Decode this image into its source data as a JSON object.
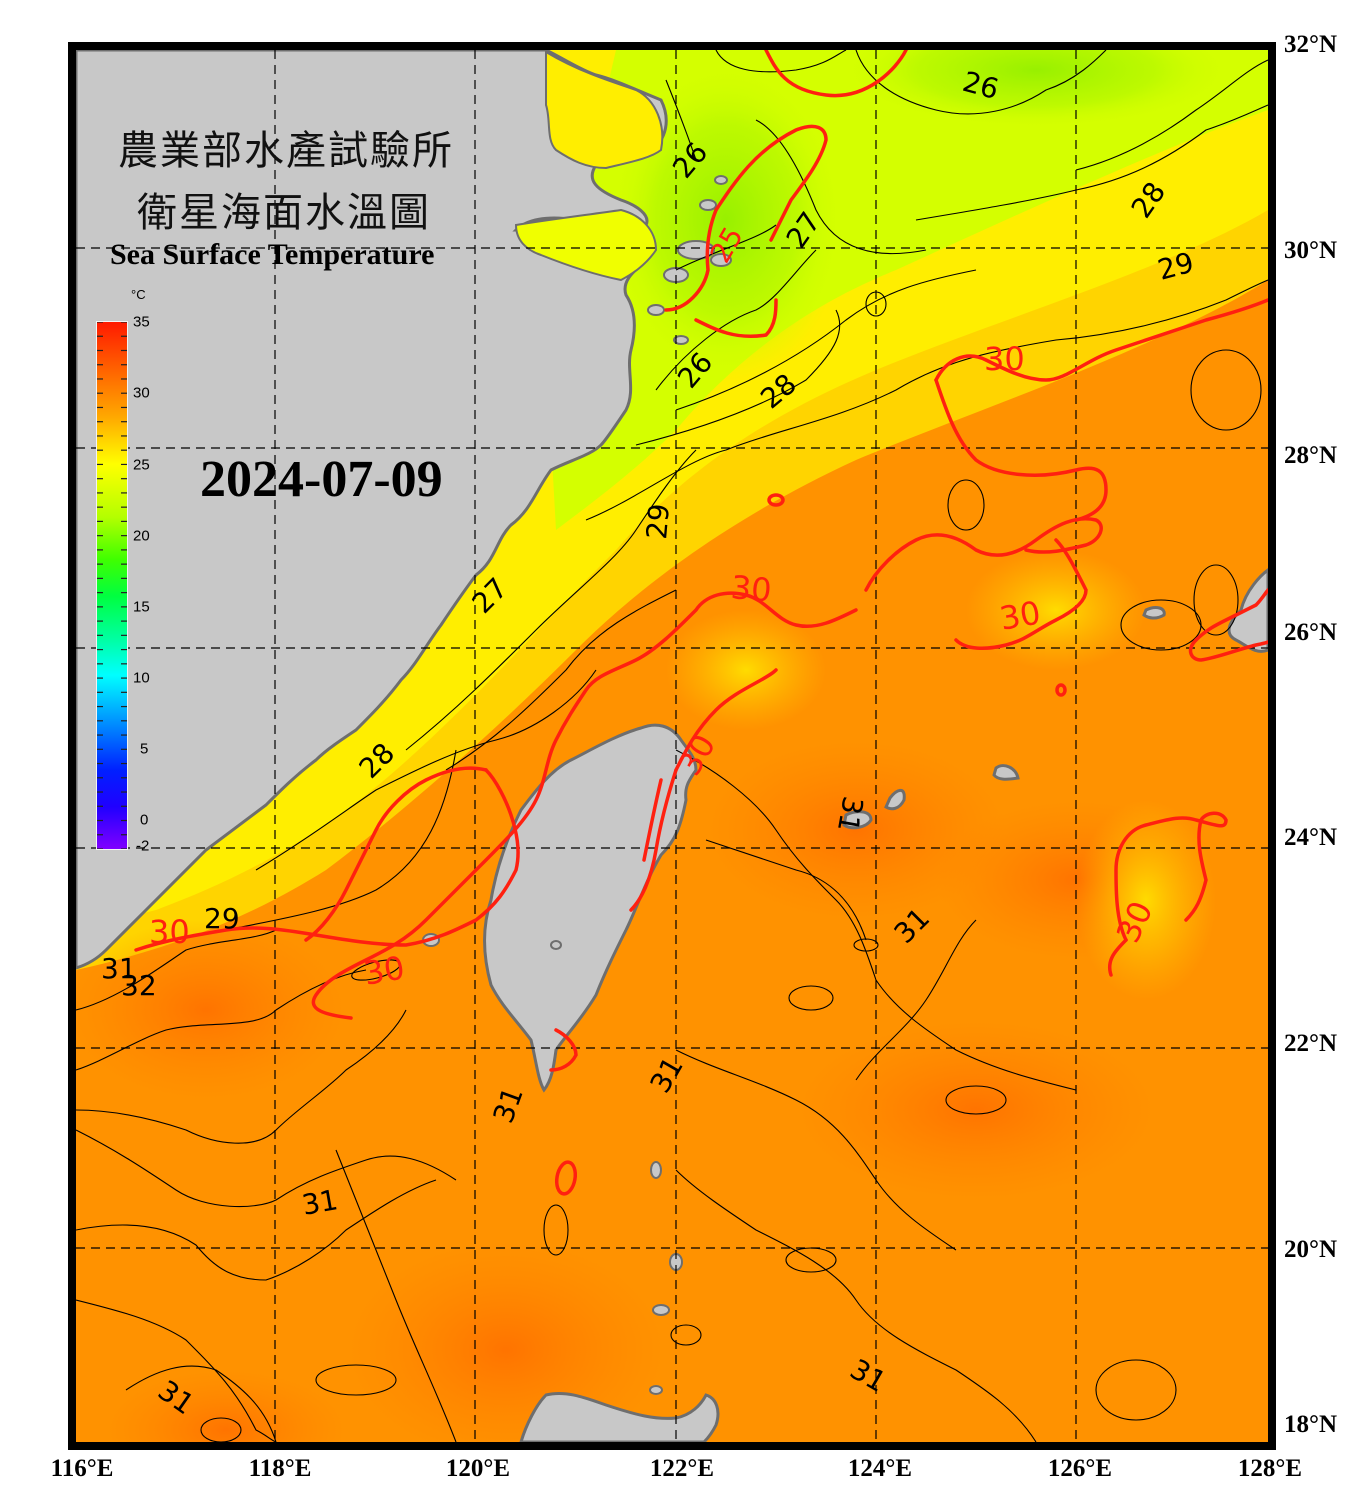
{
  "header": {
    "title_zh_line1": "農業部水產試驗所",
    "title_zh_line2": "衛星海面水溫圖",
    "title_en": "Sea Surface Temperature",
    "date": "2024-07-09"
  },
  "colorbar": {
    "unit": "°C",
    "min": -2,
    "max": 35,
    "tick_labels": [
      "35",
      "30",
      "25",
      "20",
      "15",
      "10",
      "5",
      "0",
      "-2"
    ],
    "tick_values": [
      35,
      30,
      25,
      20,
      15,
      10,
      5,
      0,
      -2
    ],
    "gradient_stops": [
      {
        "value": 35,
        "color": "#ff1a00"
      },
      {
        "value": 31,
        "color": "#ff8c00"
      },
      {
        "value": 28,
        "color": "#ffff00"
      },
      {
        "value": 24,
        "color": "#b4ff00"
      },
      {
        "value": 20,
        "color": "#00ff00"
      },
      {
        "value": 15,
        "color": "#00ff80"
      },
      {
        "value": 11,
        "color": "#00ffff"
      },
      {
        "value": 7,
        "color": "#0080ff"
      },
      {
        "value": 3,
        "color": "#0000ff"
      },
      {
        "value": -2,
        "color": "#8000ff"
      }
    ]
  },
  "axes": {
    "lon_labels": [
      "116°E",
      "118°E",
      "120°E",
      "122°E",
      "124°E",
      "126°E",
      "128°E"
    ],
    "lat_labels": [
      "32°N",
      "30°N",
      "28°N",
      "26°N",
      "24°N",
      "22°N",
      "20°N",
      "18°N"
    ],
    "lon_range": [
      116,
      128
    ],
    "lat_range": [
      18,
      32
    ],
    "grid": "dashed"
  },
  "contour_labels": [
    {
      "text": "26",
      "color": "black",
      "lon": 125.0,
      "lat": 31.7
    },
    {
      "text": "26",
      "color": "black",
      "lon": 122.2,
      "lat": 31.0
    },
    {
      "text": "25",
      "color": "red",
      "lon": 122.6,
      "lat": 30.2
    },
    {
      "text": "27",
      "color": "black",
      "lon": 123.3,
      "lat": 30.3
    },
    {
      "text": "28",
      "color": "black",
      "lon": 126.8,
      "lat": 30.6
    },
    {
      "text": "29",
      "color": "black",
      "lon": 127.0,
      "lat": 29.9
    },
    {
      "text": "30",
      "color": "red",
      "lon": 125.3,
      "lat": 28.9
    },
    {
      "text": "26",
      "color": "black",
      "lon": 122.3,
      "lat": 28.8
    },
    {
      "text": "28",
      "color": "black",
      "lon": 123.1,
      "lat": 28.6
    },
    {
      "text": "29",
      "color": "black",
      "lon": 121.8,
      "lat": 27.3
    },
    {
      "text": "30",
      "color": "red",
      "lon": 122.8,
      "lat": 26.6
    },
    {
      "text": "30",
      "color": "red",
      "lon": 125.5,
      "lat": 26.3
    },
    {
      "text": "27",
      "color": "black",
      "lon": 120.2,
      "lat": 26.5
    },
    {
      "text": "30",
      "color": "red",
      "lon": 122.3,
      "lat": 25.0
    },
    {
      "text": "28",
      "color": "black",
      "lon": 119.1,
      "lat": 24.9
    },
    {
      "text": "31",
      "color": "black",
      "lon": 123.6,
      "lat": 24.5
    },
    {
      "text": "30",
      "color": "red",
      "lon": 126.7,
      "lat": 23.3
    },
    {
      "text": "31",
      "color": "black",
      "lon": 124.4,
      "lat": 23.2
    },
    {
      "text": "29",
      "color": "black",
      "lon": 117.5,
      "lat": 23.4
    },
    {
      "text": "30",
      "color": "red",
      "lon": 117.0,
      "lat": 23.2
    },
    {
      "text": "30",
      "color": "red",
      "lon": 119.1,
      "lat": 22.8
    },
    {
      "text": "31",
      "color": "black",
      "lon": 116.4,
      "lat": 22.8
    },
    {
      "text": "32",
      "color": "black",
      "lon": 116.7,
      "lat": 22.6
    },
    {
      "text": "31",
      "color": "black",
      "lon": 121.9,
      "lat": 21.8
    },
    {
      "text": "31",
      "color": "black",
      "lon": 120.3,
      "lat": 21.4
    },
    {
      "text": "31",
      "color": "black",
      "lon": 118.5,
      "lat": 20.5
    },
    {
      "text": "31",
      "color": "black",
      "lon": 123.9,
      "lat": 19.1
    },
    {
      "text": "31",
      "color": "black",
      "lon": 116.9,
      "lat": 18.8
    }
  ],
  "colors": {
    "land": "#c8c8c8",
    "coast": "#6e6e6e",
    "frame": "#000000",
    "contour_red": "#ff2010",
    "contour_black": "#000000"
  }
}
